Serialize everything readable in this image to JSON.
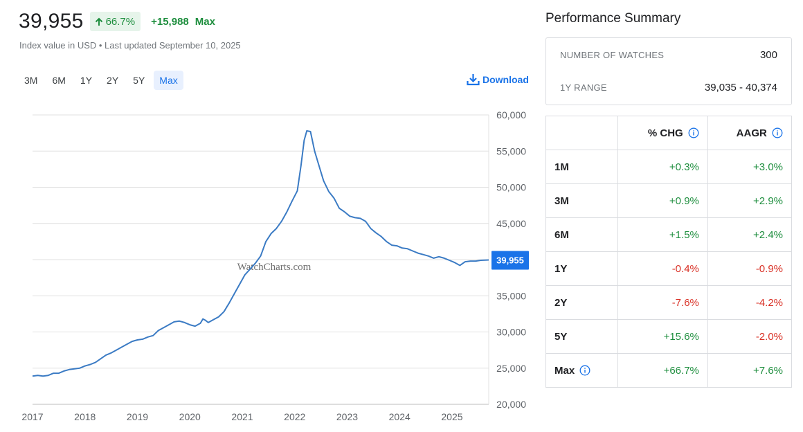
{
  "header": {
    "price": "39,955",
    "pct_change": "66.7%",
    "abs_change": "+15,988",
    "period": "Max",
    "subtitle": "Index value in USD • Last updated September 10, 2025"
  },
  "range_buttons": [
    "3M",
    "6M",
    "1Y",
    "2Y",
    "5Y",
    "Max"
  ],
  "active_range": "Max",
  "download_label": "Download",
  "watermark": "WatchCharts.com",
  "current_value_label": "39,955",
  "colors": {
    "line": "#3b7bc4",
    "badge": "#1a73e8",
    "positive": "#1e8e3e",
    "negative": "#d93025"
  },
  "summary": {
    "title": "Performance Summary",
    "watches_label": "NUMBER OF WATCHES",
    "watches_value": "300",
    "range_label": "1Y RANGE",
    "range_value": "39,035 - 40,374",
    "col_chg": "% CHG",
    "col_aagr": "AAGR",
    "rows": [
      {
        "period": "1M",
        "chg": "+0.3%",
        "aagr": "+3.0%"
      },
      {
        "period": "3M",
        "chg": "+0.9%",
        "aagr": "+2.9%"
      },
      {
        "period": "6M",
        "chg": "+1.5%",
        "aagr": "+2.4%"
      },
      {
        "period": "1Y",
        "chg": "-0.4%",
        "aagr": "-0.9%"
      },
      {
        "period": "2Y",
        "chg": "-7.6%",
        "aagr": "-4.2%"
      },
      {
        "period": "5Y",
        "chg": "+15.6%",
        "aagr": "-2.0%"
      },
      {
        "period": "Max",
        "chg": "+66.7%",
        "aagr": "+7.6%"
      }
    ]
  },
  "chart_data": {
    "type": "line",
    "ylim": [
      20000,
      60000
    ],
    "yticks": [
      20000,
      25000,
      30000,
      35000,
      40000,
      45000,
      50000,
      55000,
      60000
    ],
    "ytick_labels": [
      "20,000",
      "25,000",
      "30,000",
      "35,000",
      "40,000",
      "45,000",
      "50,000",
      "55,000",
      "60,000"
    ],
    "xticks": [
      "2017",
      "2018",
      "2019",
      "2020",
      "2021",
      "2022",
      "2023",
      "2024",
      "2025"
    ],
    "xlim": [
      2017.0,
      2025.7
    ],
    "grid": true,
    "series": [
      {
        "points": [
          [
            2017.0,
            23900
          ],
          [
            2017.1,
            24000
          ],
          [
            2017.2,
            23900
          ],
          [
            2017.3,
            24000
          ],
          [
            2017.4,
            24300
          ],
          [
            2017.5,
            24300
          ],
          [
            2017.6,
            24600
          ],
          [
            2017.7,
            24800
          ],
          [
            2017.8,
            24900
          ],
          [
            2017.9,
            25000
          ],
          [
            2018.0,
            25300
          ],
          [
            2018.1,
            25500
          ],
          [
            2018.2,
            25800
          ],
          [
            2018.3,
            26300
          ],
          [
            2018.4,
            26800
          ],
          [
            2018.5,
            27100
          ],
          [
            2018.6,
            27500
          ],
          [
            2018.7,
            27900
          ],
          [
            2018.8,
            28300
          ],
          [
            2018.9,
            28700
          ],
          [
            2019.0,
            28900
          ],
          [
            2019.1,
            29000
          ],
          [
            2019.2,
            29300
          ],
          [
            2019.3,
            29500
          ],
          [
            2019.4,
            30200
          ],
          [
            2019.5,
            30600
          ],
          [
            2019.6,
            31000
          ],
          [
            2019.7,
            31400
          ],
          [
            2019.8,
            31500
          ],
          [
            2019.9,
            31300
          ],
          [
            2020.0,
            31000
          ],
          [
            2020.1,
            30800
          ],
          [
            2020.2,
            31200
          ],
          [
            2020.25,
            31800
          ],
          [
            2020.3,
            31600
          ],
          [
            2020.35,
            31300
          ],
          [
            2020.45,
            31700
          ],
          [
            2020.55,
            32100
          ],
          [
            2020.65,
            32800
          ],
          [
            2020.75,
            34000
          ],
          [
            2020.85,
            35300
          ],
          [
            2020.95,
            36600
          ],
          [
            2021.05,
            37900
          ],
          [
            2021.15,
            38700
          ],
          [
            2021.25,
            39500
          ],
          [
            2021.35,
            40500
          ],
          [
            2021.45,
            42500
          ],
          [
            2021.55,
            43600
          ],
          [
            2021.65,
            44300
          ],
          [
            2021.75,
            45300
          ],
          [
            2021.85,
            46600
          ],
          [
            2021.95,
            48100
          ],
          [
            2022.05,
            49500
          ],
          [
            2022.12,
            53000
          ],
          [
            2022.18,
            56500
          ],
          [
            2022.23,
            57800
          ],
          [
            2022.3,
            57700
          ],
          [
            2022.38,
            55000
          ],
          [
            2022.45,
            53300
          ],
          [
            2022.55,
            50900
          ],
          [
            2022.65,
            49400
          ],
          [
            2022.75,
            48500
          ],
          [
            2022.85,
            47100
          ],
          [
            2022.95,
            46600
          ],
          [
            2023.05,
            46000
          ],
          [
            2023.15,
            45800
          ],
          [
            2023.25,
            45700
          ],
          [
            2023.35,
            45300
          ],
          [
            2023.45,
            44300
          ],
          [
            2023.55,
            43700
          ],
          [
            2023.65,
            43200
          ],
          [
            2023.75,
            42500
          ],
          [
            2023.85,
            42000
          ],
          [
            2023.95,
            41900
          ],
          [
            2024.05,
            41600
          ],
          [
            2024.15,
            41500
          ],
          [
            2024.25,
            41200
          ],
          [
            2024.35,
            40900
          ],
          [
            2024.45,
            40700
          ],
          [
            2024.55,
            40500
          ],
          [
            2024.65,
            40200
          ],
          [
            2024.75,
            40400
          ],
          [
            2024.85,
            40200
          ],
          [
            2024.95,
            39900
          ],
          [
            2025.05,
            39600
          ],
          [
            2025.15,
            39200
          ],
          [
            2025.25,
            39700
          ],
          [
            2025.35,
            39800
          ],
          [
            2025.45,
            39800
          ],
          [
            2025.55,
            39900
          ],
          [
            2025.7,
            39955
          ]
        ]
      }
    ]
  }
}
